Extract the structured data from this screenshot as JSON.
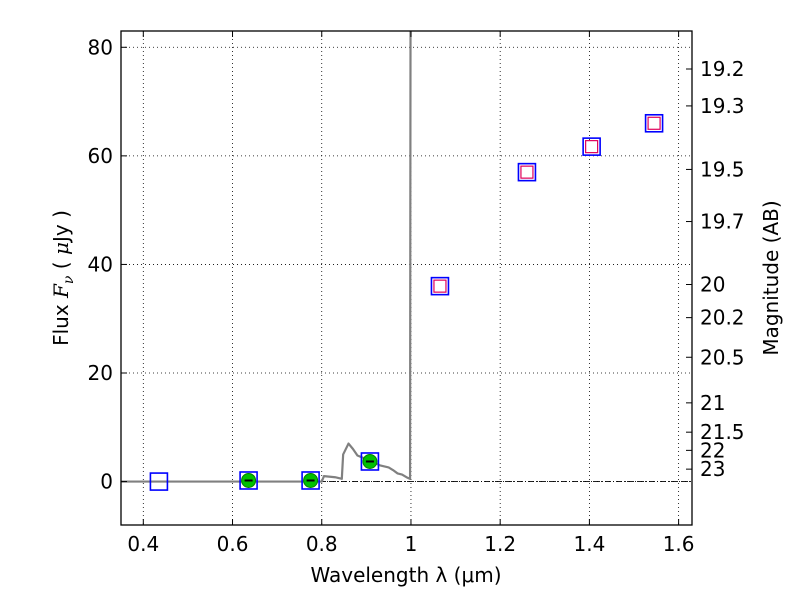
{
  "chart_data": {
    "type": "scatter",
    "xlabel": "Wavelength  λ (μm)",
    "ylabel_parts": [
      "Flux  ",
      "F",
      "ν",
      "  ( ",
      "μ",
      "Jy )"
    ],
    "y2label": "Magnitude (AB)",
    "xlim": [
      0.35,
      1.63
    ],
    "ylim": [
      -8,
      83
    ],
    "grid": true,
    "x_ticks": [
      {
        "value": 0.4,
        "label": "0.4"
      },
      {
        "value": 0.6,
        "label": "0.6"
      },
      {
        "value": 0.8,
        "label": "0.8"
      },
      {
        "value": 1.0,
        "label": "1"
      },
      {
        "value": 1.2,
        "label": "1.2"
      },
      {
        "value": 1.4,
        "label": "1.4"
      },
      {
        "value": 1.6,
        "label": "1.6"
      }
    ],
    "y_ticks": [
      {
        "value": 0,
        "label": "0"
      },
      {
        "value": 20,
        "label": "20"
      },
      {
        "value": 40,
        "label": "40"
      },
      {
        "value": 60,
        "label": "60"
      },
      {
        "value": 80,
        "label": "80"
      }
    ],
    "magnitude_ticks": [
      {
        "label": "19.2",
        "flux": 76.0
      },
      {
        "label": "19.3",
        "flux": 69.2
      },
      {
        "label": "19.5",
        "flux": 57.5
      },
      {
        "label": "19.7",
        "flux": 47.9
      },
      {
        "label": "20",
        "flux": 36.3
      },
      {
        "label": "20.2",
        "flux": 30.2
      },
      {
        "label": "20.5",
        "flux": 22.9
      },
      {
        "label": "21",
        "flux": 14.5
      },
      {
        "label": "21.5",
        "flux": 9.1
      },
      {
        "label": "22",
        "flux": 5.75
      },
      {
        "label": "23",
        "flux": 2.29
      }
    ],
    "observed_fluxes": [
      {
        "x": 0.435,
        "y": 0.0
      },
      {
        "x": 0.636,
        "y": 0.2
      },
      {
        "x": 0.775,
        "y": 0.2
      },
      {
        "x": 0.908,
        "y": 3.7
      },
      {
        "x": 1.065,
        "y": 36.0
      },
      {
        "x": 1.26,
        "y": 57.0
      },
      {
        "x": 1.405,
        "y": 61.7
      },
      {
        "x": 1.545,
        "y": 66.0
      }
    ],
    "model_fluxes": [
      {
        "x": 0.636,
        "y": 0.2
      },
      {
        "x": 0.775,
        "y": 0.2
      },
      {
        "x": 0.908,
        "y": 3.7
      }
    ],
    "upper_limit_fluxes": [
      {
        "x": 1.065,
        "y": 36.0
      },
      {
        "x": 1.26,
        "y": 57.0
      },
      {
        "x": 1.405,
        "y": 61.7
      },
      {
        "x": 1.545,
        "y": 66.0
      }
    ],
    "spectrum": [
      [
        0.35,
        0.0
      ],
      [
        0.8,
        0.0
      ],
      [
        0.805,
        1.0
      ],
      [
        0.83,
        0.8
      ],
      [
        0.845,
        0.5
      ],
      [
        0.848,
        5.0
      ],
      [
        0.86,
        7.0
      ],
      [
        0.87,
        6.0
      ],
      [
        0.88,
        4.8
      ],
      [
        0.895,
        4.3
      ],
      [
        0.91,
        3.8
      ],
      [
        0.93,
        3.0
      ],
      [
        0.95,
        2.6
      ],
      [
        0.96,
        2.1
      ],
      [
        0.97,
        1.5
      ],
      [
        0.98,
        1.3
      ],
      [
        0.99,
        0.8
      ],
      [
        0.998,
        0.5
      ],
      [
        0.999,
        83.0
      ]
    ],
    "colors": {
      "spectrum": "#808080",
      "observed_marker": "#0000ff",
      "model_marker": "#00c000",
      "upper_limit_marker": "#e0005a",
      "zero_line": "#000000",
      "grid": "#000000"
    }
  }
}
